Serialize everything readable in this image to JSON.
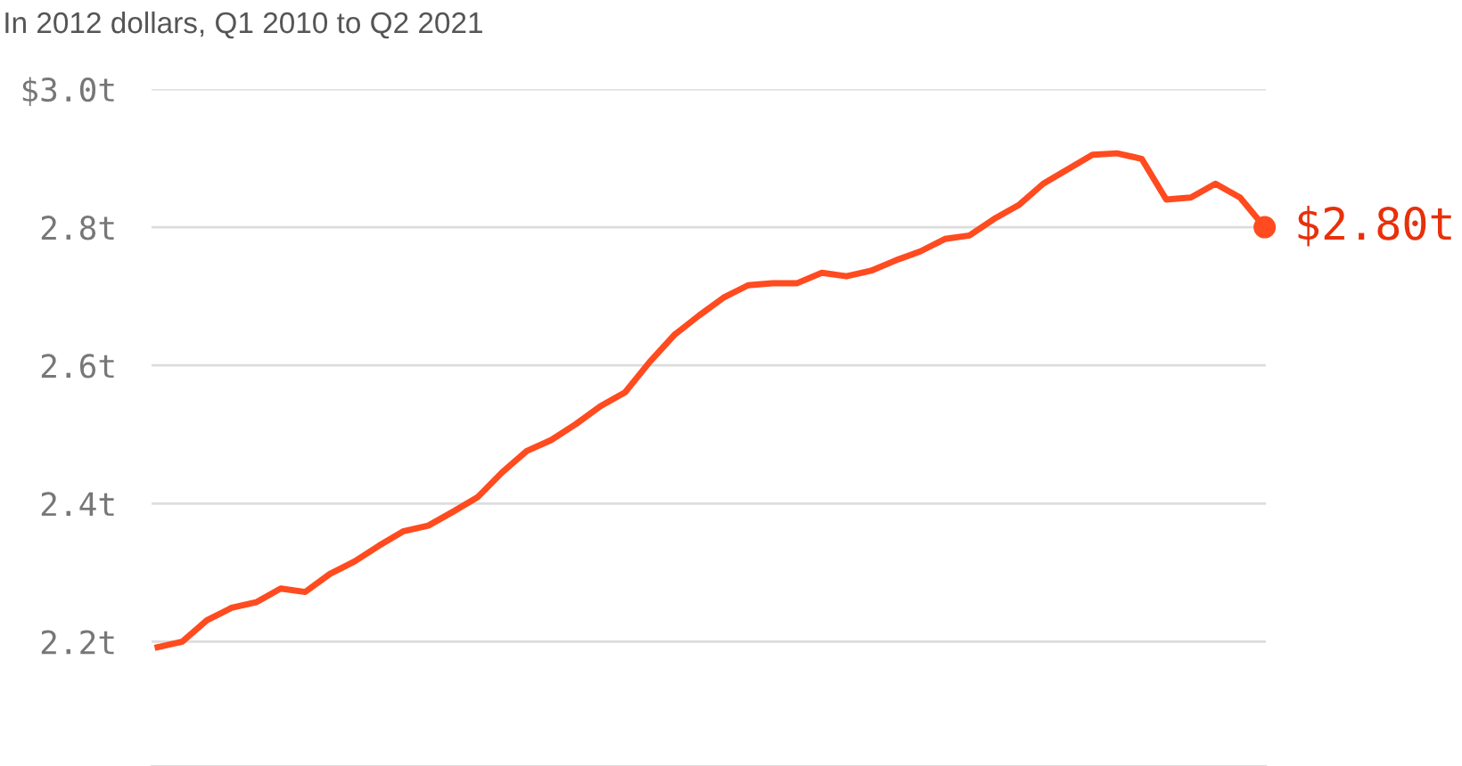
{
  "chart_data": {
    "type": "line",
    "title": "In 2012 dollars, Q1 2010 to Q2 2021",
    "categories": [
      null,
      null,
      null,
      null,
      null,
      null,
      null,
      null,
      null,
      null,
      null,
      null,
      null,
      null,
      null,
      null,
      null,
      null,
      null,
      null,
      null,
      null,
      null,
      null,
      null,
      null,
      null,
      null,
      null,
      null,
      null,
      null,
      null,
      null,
      null,
      null,
      null,
      null,
      null,
      null,
      null,
      null,
      null,
      null,
      null,
      null
    ],
    "series": [
      {
        "color": "#ff4b1f",
        "values": [
          2.192,
          2.2,
          2.231,
          2.249,
          2.257,
          2.277,
          2.272,
          2.298,
          2.316,
          2.339,
          2.36,
          2.368,
          2.388,
          2.409,
          2.445,
          2.476,
          2.492,
          2.515,
          2.541,
          2.561,
          2.605,
          2.644,
          2.672,
          2.698,
          2.716,
          2.719,
          2.719,
          2.734,
          2.729,
          2.737,
          2.752,
          2.765,
          2.783,
          2.788,
          2.812,
          2.832,
          2.863,
          2.884,
          2.905,
          2.907,
          2.899,
          2.84,
          2.843,
          2.863,
          2.843,
          2.8
        ]
      }
    ],
    "ylim": [
      2.02,
      3.0
    ],
    "yticks": [
      {
        "value": 2.2,
        "label": "2.2t"
      },
      {
        "value": 2.4,
        "label": "2.4t"
      },
      {
        "value": 2.6,
        "label": "2.6t"
      },
      {
        "value": 2.8,
        "label": "2.8t"
      },
      {
        "value": 3.0,
        "label": "$3.0t"
      }
    ],
    "tick_labels": "y",
    "grid": "y",
    "legend": false,
    "marker": "none",
    "line_style": "solid",
    "annotations": [
      "$2.80t"
    ]
  }
}
